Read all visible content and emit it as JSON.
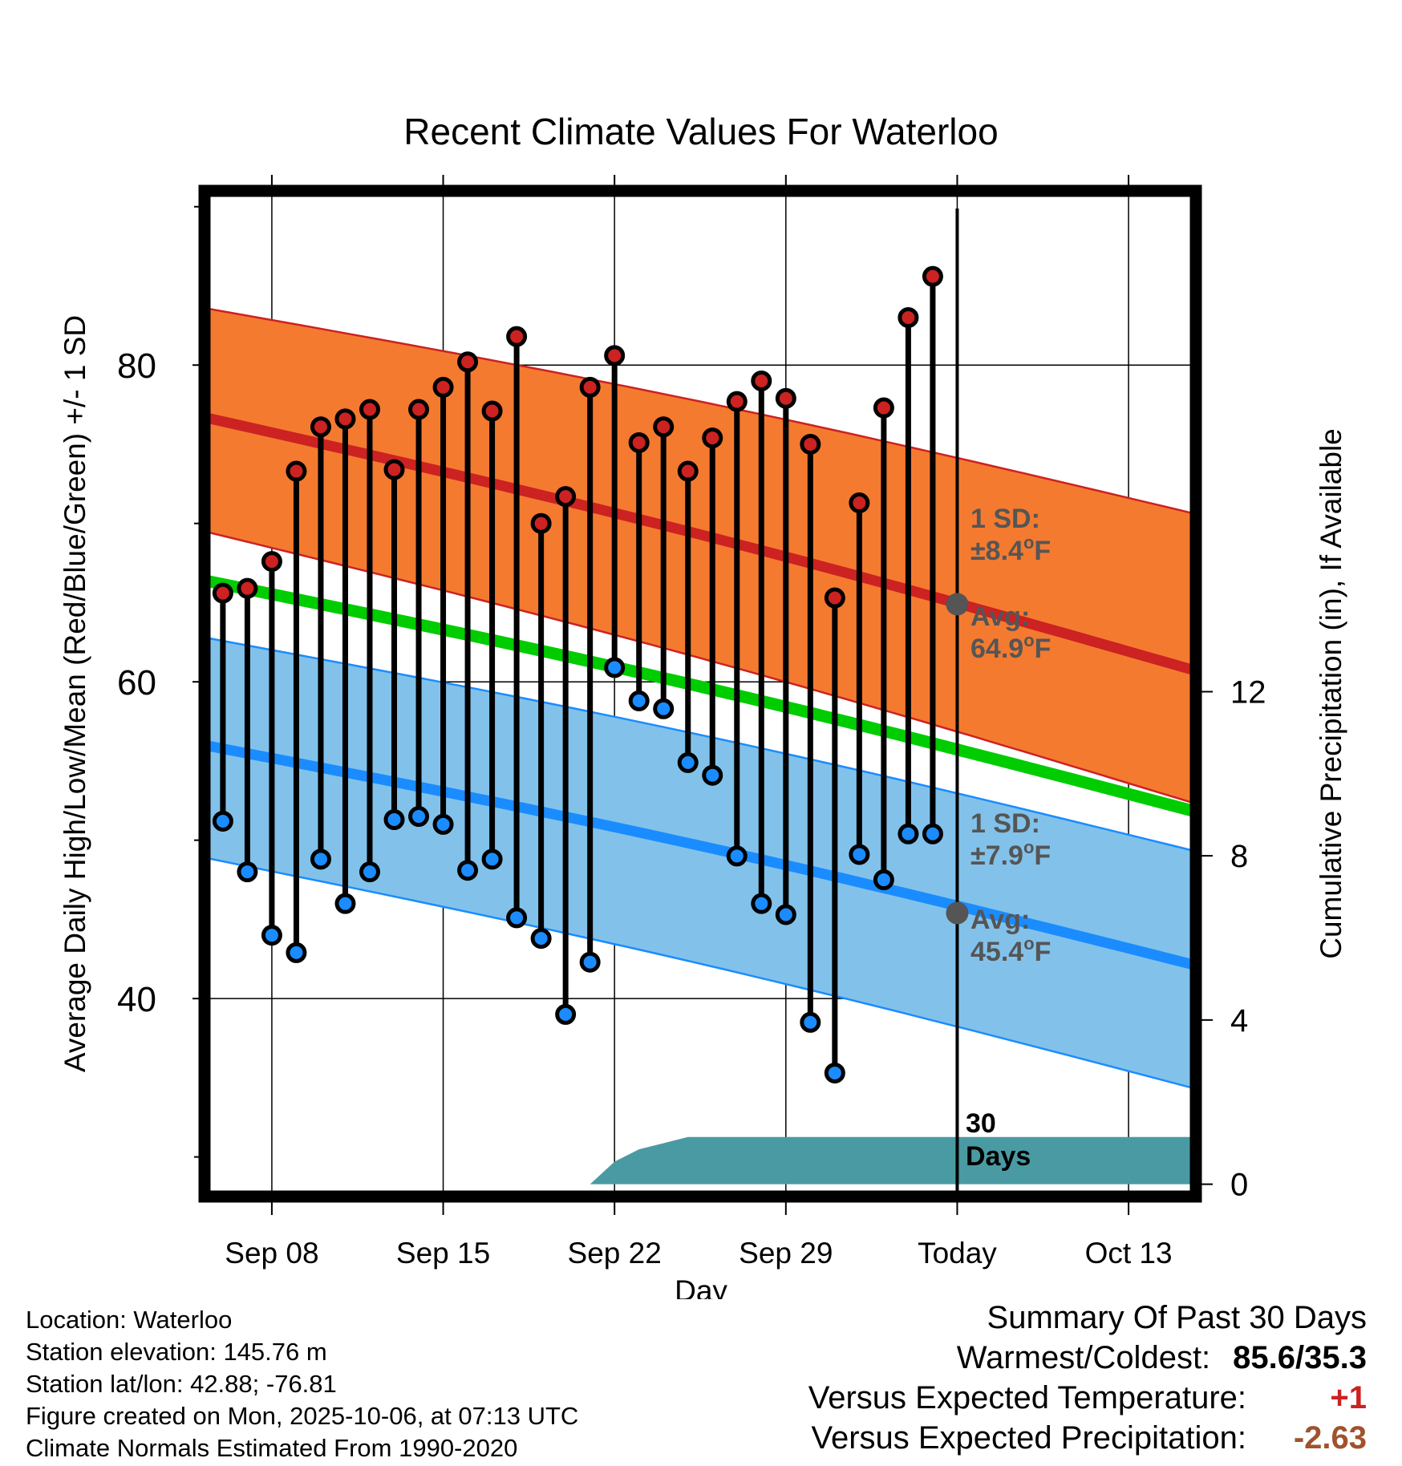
{
  "title": "Recent Climate Values For Waterloo",
  "chart_data": {
    "type": "line",
    "title": "Recent Climate Values For Waterloo",
    "xlabel": "Day",
    "ylabel": "Average Daily High/Low/Mean (Red/Blue/Green) +/- 1 SD",
    "y2label": "Cumulative Precipitation (in), If Available",
    "ylim": [
      27.5,
      91
    ],
    "y_ticks": [
      40,
      60,
      80
    ],
    "y2lim": [
      -0.3,
      24.2
    ],
    "y2_ticks": [
      0,
      4,
      8,
      12
    ],
    "x_range_days": [
      -30.75,
      9.75
    ],
    "x_ticks": [
      {
        "day": -28,
        "label": "Sep 08"
      },
      {
        "day": -21,
        "label": "Sep 15"
      },
      {
        "day": -14,
        "label": "Sep 22"
      },
      {
        "day": -7,
        "label": "Sep 29"
      },
      {
        "day": 0,
        "label": "Today"
      },
      {
        "day": 7,
        "label": "Oct 13"
      }
    ],
    "daily_obs": {
      "days": [
        -30,
        -29,
        -28,
        -27,
        -26,
        -25,
        -24,
        -23,
        -22,
        -21,
        -20,
        -19,
        -18,
        -17,
        -16,
        -15,
        -14,
        -13,
        -12,
        -11,
        -10,
        -9,
        -8,
        -7,
        -6,
        -5,
        -4,
        -3,
        -2,
        -1
      ],
      "highs": [
        65.6,
        65.9,
        67.6,
        73.3,
        76.1,
        76.6,
        77.2,
        73.4,
        77.2,
        78.6,
        80.2,
        77.1,
        81.8,
        70.0,
        71.7,
        78.6,
        80.6,
        75.1,
        76.1,
        73.3,
        75.4,
        77.7,
        79.0,
        77.9,
        75.0,
        65.3,
        71.3,
        77.3,
        83.0,
        85.6
      ],
      "lows": [
        51.2,
        48.0,
        44.0,
        42.9,
        48.8,
        46.0,
        48.0,
        51.3,
        51.5,
        51.0,
        48.1,
        48.8,
        45.1,
        43.8,
        39.0,
        42.3,
        60.9,
        58.8,
        58.3,
        54.9,
        54.1,
        49.0,
        46.0,
        45.3,
        38.5,
        35.3,
        49.1,
        47.5,
        50.4,
        50.4
      ],
      "high_color": "#cc2222",
      "low_color": "#1a8cff"
    },
    "normals": {
      "start_day": -30.75,
      "end_day": 9.75,
      "high_mean": [
        76.7,
        60.7
      ],
      "high_sd_band": [
        [
          83.6,
          70.6
        ],
        [
          69.5,
          52.3
        ]
      ],
      "low_mean": [
        56.0,
        42.1
      ],
      "low_sd_band": [
        [
          62.8,
          49.3
        ],
        [
          48.9,
          34.3
        ]
      ],
      "daily_mean": [
        66.4,
        51.8
      ],
      "high_color": "#cc2222",
      "high_band_color": "#f47a30",
      "low_color": "#1a8cff",
      "low_band_color": "#82c2ea",
      "mean_color": "#00cc00"
    },
    "precipitation": {
      "days": [
        -15,
        -14,
        -13,
        -12,
        -11,
        9.75
      ],
      "cumulative": [
        0,
        0.55,
        0.85,
        1.0,
        1.15,
        1.15
      ],
      "color": "#4a9aa3"
    },
    "annotations": [
      {
        "id": "high_sd",
        "line1": "1 SD:",
        "line2": "±8.4",
        "unit": "o",
        "suffix": "F"
      },
      {
        "id": "high_avg",
        "line1": "Avg:",
        "line2": "64.9",
        "unit": "o",
        "suffix": "F",
        "value": 64.9
      },
      {
        "id": "low_sd",
        "line1": "1 SD:",
        "line2": "±7.9",
        "unit": "o",
        "suffix": "F"
      },
      {
        "id": "low_avg",
        "line1": "Avg:",
        "line2": "45.4",
        "unit": "o",
        "suffix": "F",
        "value": 45.4
      },
      {
        "id": "days_label",
        "line1": "30",
        "line2": "Days"
      }
    ]
  },
  "footer": {
    "location": "Location: Waterloo",
    "elevation": "Station elevation: 145.76 m",
    "latlon": "Station lat/lon: 42.88; -76.81",
    "created": "Figure created on Mon, 2025-10-06, at 07:13 UTC",
    "normals": "Climate Normals Estimated From 1990-2020"
  },
  "summary": {
    "heading": "Summary Of Past 30 Days",
    "warmest_label": "Warmest/Coldest:",
    "warmest_value": "85.6/35.3",
    "temp_label": "Versus Expected Temperature:",
    "temp_value": "+1",
    "temp_color": "#cc2222",
    "precip_label": "Versus Expected Precipitation:",
    "precip_value": "-2.63",
    "precip_color": "#a0522d"
  }
}
